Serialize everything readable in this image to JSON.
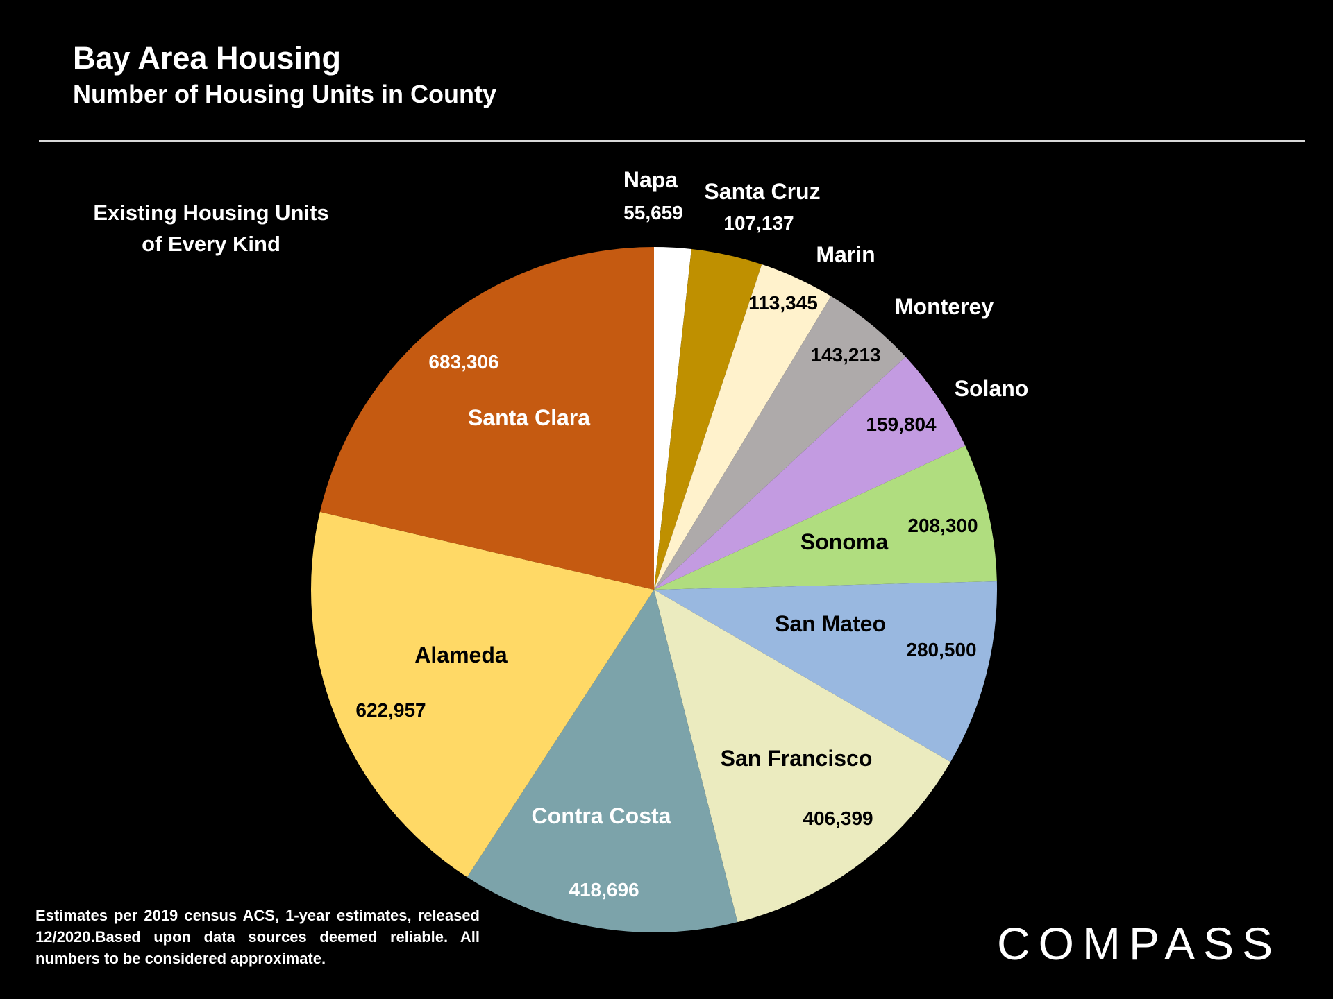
{
  "header": {
    "title": "Bay Area Housing",
    "subtitle": "Number of Housing Units in County"
  },
  "chart_note": {
    "line1": "Existing Housing Units",
    "line2": "of Every Kind"
  },
  "footnote": "Estimates per 2019 census ACS, 1-year estimates, released 12/2020.Based upon data sources deemed reliable. All numbers to be considered approximate.",
  "logo": "COMPASS",
  "chart_data": {
    "type": "pie",
    "title": "Bay Area Housing",
    "subtitle": "Number of Housing Units in County",
    "start": "12 o'clock, clockwise",
    "slices": [
      {
        "name": "Napa",
        "value": 55659,
        "label": "55,659",
        "color": "#FFFFFF"
      },
      {
        "name": "Santa Cruz",
        "value": 107137,
        "label": "107,137",
        "color": "#BF9000"
      },
      {
        "name": "Marin",
        "value": 113345,
        "label": "113,345",
        "color": "#FFF2CC"
      },
      {
        "name": "Monterey",
        "value": 143213,
        "label": "143,213",
        "color": "#AEAAAA"
      },
      {
        "name": "Solano",
        "value": 159804,
        "label": "159,804",
        "color": "#C39BE1"
      },
      {
        "name": "Sonoma",
        "value": 208300,
        "label": "208,300",
        "color": "#B0DD7F"
      },
      {
        "name": "San Mateo",
        "value": 280500,
        "label": "280,500",
        "color": "#99B8E0"
      },
      {
        "name": "San Francisco",
        "value": 406399,
        "label": "406,399",
        "color": "#EBEBBF"
      },
      {
        "name": "Contra Costa",
        "value": 418696,
        "label": "418,696",
        "color": "#7CA3AA"
      },
      {
        "name": "Alameda",
        "value": 622957,
        "label": "622,957",
        "color": "#FFD966"
      },
      {
        "name": "Santa Clara",
        "value": 683306,
        "label": "683,306",
        "color": "#C55A11"
      }
    ]
  }
}
